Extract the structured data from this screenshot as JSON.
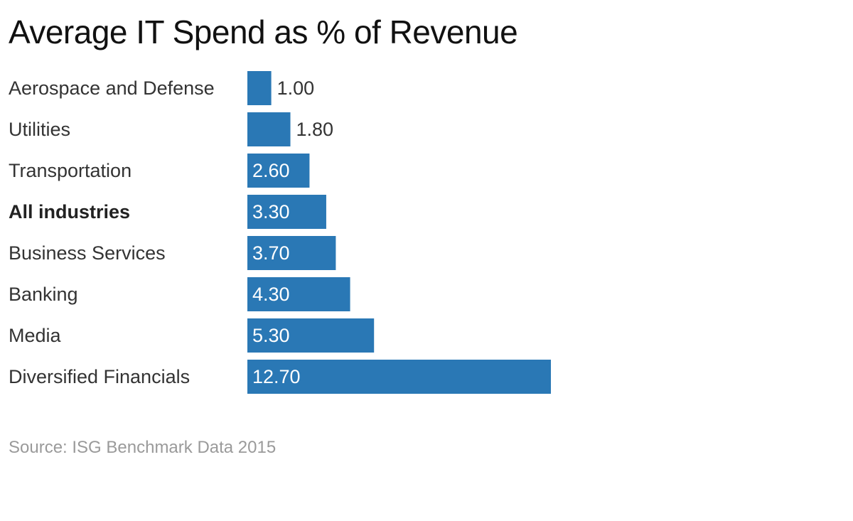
{
  "chart_data": {
    "type": "bar",
    "orientation": "horizontal",
    "title": "Average IT Spend as % of Revenue",
    "categories": [
      "Aerospace and Defense",
      "Utilities",
      "Transportation",
      "All industries",
      "Business Services",
      "Banking",
      "Media",
      "Diversified Financials"
    ],
    "values": [
      1.0,
      1.8,
      2.6,
      3.3,
      3.7,
      4.3,
      5.3,
      12.7
    ],
    "value_labels": [
      "1.00",
      "1.80",
      "2.60",
      "3.30",
      "3.70",
      "4.30",
      "5.30",
      "12.70"
    ],
    "highlighted_category": "All industries",
    "xlim": [
      0,
      12.7
    ],
    "xlabel": "",
    "ylabel": "",
    "grid": false,
    "bar_color": "#2a78b5",
    "source": "Source: ISG Benchmark Data 2015"
  }
}
